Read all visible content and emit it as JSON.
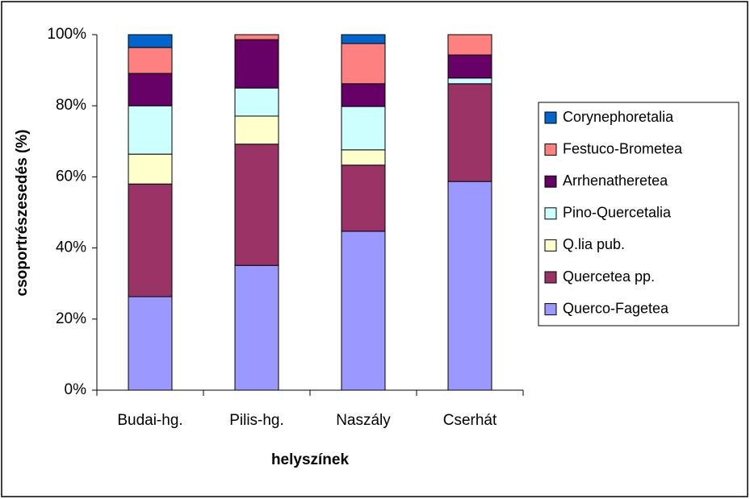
{
  "chart_data": {
    "type": "bar",
    "stacked": true,
    "y_label": "csoportrészesedés (%)",
    "x_label": "helyszínek",
    "categories": [
      "Budai-hg.",
      "Pilis-hg.",
      "Naszály",
      "Cserhát"
    ],
    "series": [
      {
        "name": "Querco-Fagetea",
        "color": "#9999ff",
        "values": [
          26.3,
          35.1,
          44.7,
          58.7
        ]
      },
      {
        "name": "Quercetea pp.",
        "color": "#993366",
        "values": [
          31.7,
          34.1,
          18.6,
          27.5
        ]
      },
      {
        "name": "Q.lia pub.",
        "color": "#ffffcc",
        "values": [
          8.4,
          7.9,
          4.3,
          0
        ]
      },
      {
        "name": "Pino-Quercetalia",
        "color": "#ccffff",
        "values": [
          13.6,
          7.9,
          12.2,
          1.6
        ]
      },
      {
        "name": "Arrhenatheretea",
        "color": "#660066",
        "values": [
          9.1,
          13.6,
          6.4,
          6.5
        ]
      },
      {
        "name": "Festuco-Brometea",
        "color": "#ff8080",
        "values": [
          7.3,
          1.4,
          11.3,
          5.7
        ]
      },
      {
        "name": "Corynephoretalia",
        "color": "#0066cc",
        "values": [
          3.6,
          0,
          2.5,
          0
        ]
      }
    ],
    "ylim": [
      0,
      100
    ],
    "yticks": [
      {
        "value": 0,
        "label": "0%"
      },
      {
        "value": 20,
        "label": "20%"
      },
      {
        "value": 40,
        "label": "40%"
      },
      {
        "value": 60,
        "label": "60%"
      },
      {
        "value": 80,
        "label": "80%"
      },
      {
        "value": 100,
        "label": "100%"
      }
    ],
    "grid": false,
    "legend": "right"
  }
}
